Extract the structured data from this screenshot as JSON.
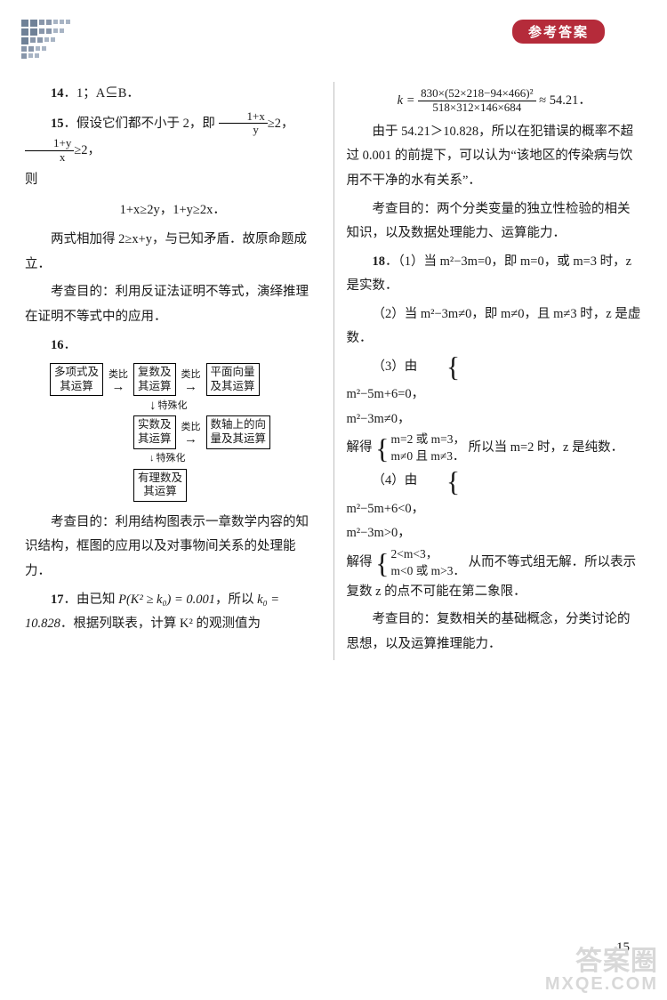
{
  "header": {
    "badge": "参考答案"
  },
  "left": {
    "q14": {
      "num": "14",
      "body": "．1；A⊆B．"
    },
    "q15": {
      "num": "15",
      "intro_a": "．假设它们都不小于 2，即 ",
      "frac1_num": "1+x",
      "frac1_den": "y",
      "intro_b": "≥2，",
      "frac2_num": "1+y",
      "frac2_den": "x",
      "intro_c": "≥2，",
      "line_then": "则",
      "math_block": "1+x≥2y，1+y≥2x．",
      "p2": "两式相加得 2≥x+y，与已知矛盾．故原命题成立．",
      "p3": "考查目的：利用反证法证明不等式，演绎推理在证明不等式中的应用．"
    },
    "q16": {
      "num": "16",
      "flow": {
        "b1": "多项式及\n其运算",
        "a1": "类比",
        "b2": "复数及\n其运算",
        "a2": "类比",
        "b3": "平面向量\n及其运算",
        "v1": "特殊化",
        "b4": "实数及\n其运算",
        "a3": "类比",
        "b5": "数轴上的向\n量及其运算",
        "v2": "特殊化",
        "b6": "有理数及\n其运算"
      },
      "p1": "考查目的：利用结构图表示一章数学内容的知识结构，框图的应用以及对事物间关系的处理能力．"
    },
    "q17": {
      "num": "17",
      "p1_a": "．由已知 ",
      "p1_expr": "P(K² ≥ k₀) = 0.001",
      "p1_b": "，所以 ",
      "p1_c": "k₀ = 10.828",
      "p1_d": "．根据列联表，计算 K² 的观测值为"
    }
  },
  "right": {
    "k_eq": {
      "lhs": "k = ",
      "num": "830×(52×218−94×466)²",
      "den": "518×312×146×684",
      "rhs": " ≈ 54.21．"
    },
    "p1": "由于 54.21＞10.828，所以在犯错误的概率不超过 0.001 的前提下，可以认为“该地区的传染病与饮用不干净的水有关系”．",
    "p2": "考查目的：两个分类变量的独立性检验的相关知识，以及数据处理能力、运算能力．",
    "q18": {
      "num": "18",
      "part1": "．（1）当 m²−3m=0，即 m=0，或 m=3 时，z 是实数．",
      "part2": "（2）当 m²−3m≠0，即 m≠0，且 m≠3 时，z 是虚数．",
      "part3_lead": "（3）由",
      "part3_sys_a": "m²−5m+6=0，",
      "part3_sys_b": "m²−3m≠0，",
      "part3_mid": "解得",
      "part3_sol_a": "m=2 或 m=3，",
      "part3_sol_b": "m≠0 且 m≠3．",
      "part3_tail": "所以当 m=2 时，z 是纯数．",
      "part4_lead": "（4）由",
      "part4_sys_a": "m²−5m+6<0，",
      "part4_sys_b": "m²−3m>0，",
      "part4_mid": "解得",
      "part4_sol_a": "2<m<3，",
      "part4_sol_b": "m<0 或 m>3．",
      "part4_tail": "从而不等式组无解．所以表示复数 z 的点不可能在第二象限．",
      "p_exam": "考查目的：复数相关的基础概念，分类讨论的思想，以及运算推理能力．"
    }
  },
  "pagenum": "15",
  "watermark": {
    "line1": "答案圈",
    "line2": "MXQE.COM"
  }
}
